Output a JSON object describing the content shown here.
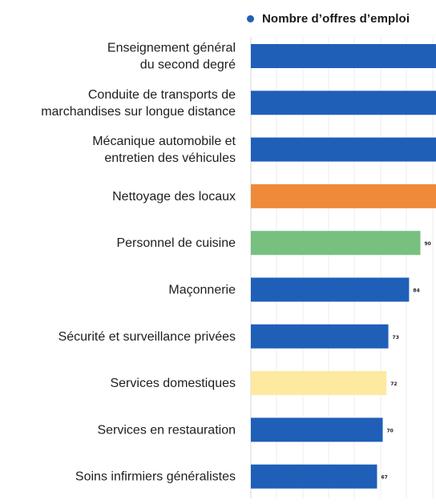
{
  "legend": {
    "label": "Nombre d’offres d’emploi",
    "color": "#1f5fb8"
  },
  "chart_data": {
    "type": "bar",
    "orientation": "horizontal",
    "title": "",
    "xlabel": "",
    "ylabel": "",
    "grid": true,
    "legend_position": "top",
    "series": [
      {
        "name": "Nombre d’offres d’emploi"
      }
    ],
    "categories": [
      [
        "Enseignement général",
        "du second degré"
      ],
      [
        "Conduite de transports de",
        "marchandises sur longue distance"
      ],
      [
        "Mécanique automobile et",
        "entretien des véhicules"
      ],
      [
        "Nettoyage des locaux"
      ],
      [
        "Personnel de cuisine"
      ],
      [
        "Maçonnerie"
      ],
      [
        "Sécurité et surveillance privées"
      ],
      [
        "Services domestiques"
      ],
      [
        "Services en restauration"
      ],
      [
        "Soins infirmiers généralistes"
      ]
    ],
    "values": [
      null,
      null,
      null,
      null,
      90,
      84,
      73,
      72,
      70,
      67
    ],
    "value_labels": [
      "",
      "",
      "",
      "",
      "90",
      "84",
      "73",
      "72",
      "70",
      "67"
    ],
    "colors": [
      "#1f5fb8",
      "#1f5fb8",
      "#1f5fb8",
      "#ef8a3a",
      "#77c07f",
      "#1f5fb8",
      "#1f5fb8",
      "#fde9a0",
      "#1f5fb8",
      "#1f5fb8"
    ]
  }
}
